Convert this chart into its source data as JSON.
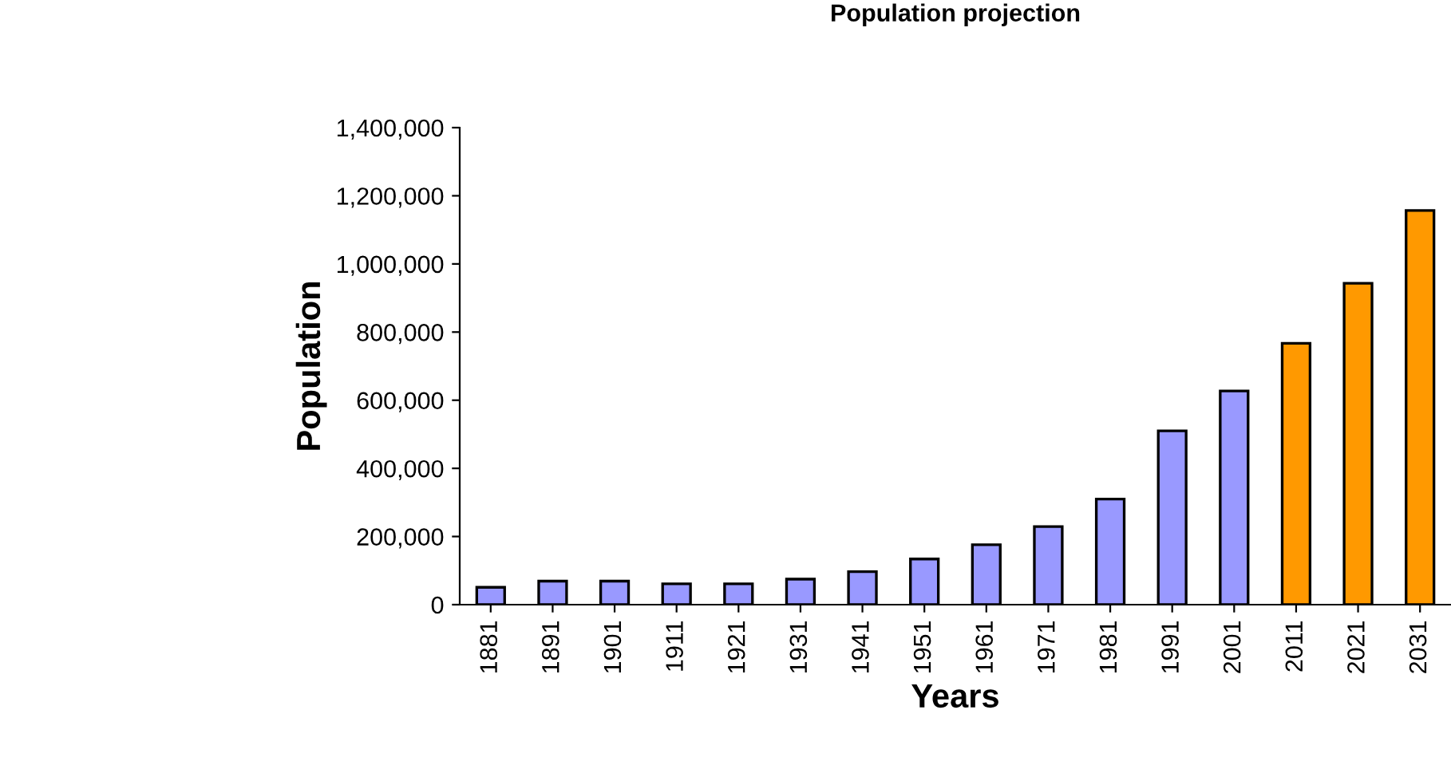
{
  "chart_data": {
    "type": "bar",
    "title": "Population projection",
    "xlabel": "Years",
    "ylabel": "Population",
    "categories": [
      "1881",
      "1891",
      "1901",
      "1911",
      "1921",
      "1931",
      "1941",
      "1951",
      "1961",
      "1971",
      "1981",
      "1991",
      "2001",
      "2011",
      "2021",
      "2031"
    ],
    "values": [
      51000,
      69000,
      69000,
      61000,
      61000,
      75000,
      97000,
      134000,
      176000,
      229000,
      310000,
      510000,
      627000,
      767000,
      943000,
      1157000
    ],
    "colors": [
      "#9999ff",
      "#9999ff",
      "#9999ff",
      "#9999ff",
      "#9999ff",
      "#9999ff",
      "#9999ff",
      "#9999ff",
      "#9999ff",
      "#9999ff",
      "#9999ff",
      "#9999ff",
      "#9999ff",
      "#ff9900",
      "#ff9900",
      "#ff9900"
    ],
    "ylim": [
      0,
      1400000
    ],
    "yticks": [
      {
        "value": 0,
        "label": "0"
      },
      {
        "value": 200000,
        "label": "200,000"
      },
      {
        "value": 400000,
        "label": "400,000"
      },
      {
        "value": 600000,
        "label": "600,000"
      },
      {
        "value": 800000,
        "label": "800,000"
      },
      {
        "value": 1000000,
        "label": "1,000,000"
      },
      {
        "value": 1200000,
        "label": "1,200,000"
      },
      {
        "value": 1400000,
        "label": "1,400,000"
      }
    ],
    "grid": false,
    "legend": false
  }
}
